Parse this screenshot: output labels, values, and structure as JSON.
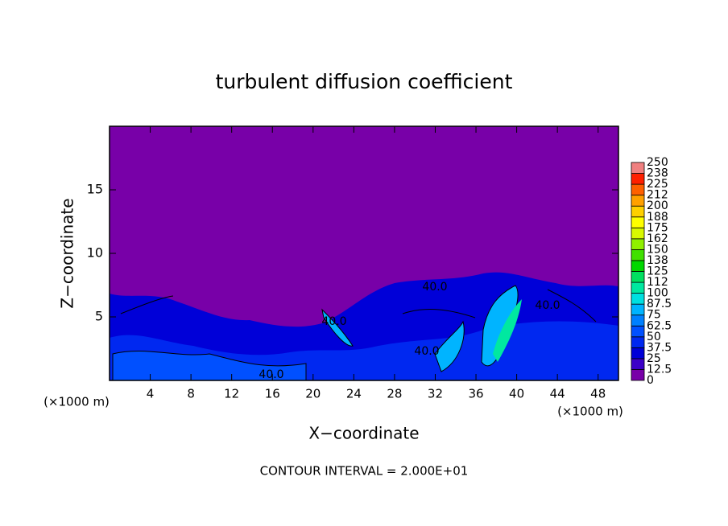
{
  "chart_data": {
    "type": "contour",
    "title": "turbulent diffusion coefficient",
    "x_label": "X−coordinate",
    "y_label": "Z−coordinate",
    "x_unit": "(×1000 m)",
    "x_unit_right": "(×1000 m)",
    "footer": "CONTOUR INTERVAL = 2.000E+01",
    "xlim": [
      0,
      50
    ],
    "xticks": [
      4,
      8,
      12,
      16,
      20,
      24,
      28,
      32,
      36,
      40,
      44,
      48
    ],
    "ylim": [
      0,
      20
    ],
    "yticks": [
      5,
      10,
      15
    ],
    "contour_labels": [
      "40.0",
      "40.0",
      "40.0",
      "40.0",
      "40.0"
    ],
    "colorbar": {
      "ticks": [
        0,
        12.5,
        25,
        37.5,
        50,
        62.5,
        75,
        87.5,
        100,
        {
          "value": 112.5,
          "label": "112"
        },
        125,
        {
          "value": 137.5,
          "label": "138"
        },
        150,
        {
          "value": 162.5,
          "label": "162"
        },
        175,
        {
          "value": 187.5,
          "label": "188"
        },
        200,
        {
          "value": 212.5,
          "label": "212"
        },
        225,
        {
          "value": 237.5,
          "label": "238"
        },
        250
      ],
      "colors": [
        "#7800a8",
        "#3c00c8",
        "#0000d8",
        "#0028f0",
        "#0050ff",
        "#0080ff",
        "#00b4ff",
        "#00e0e0",
        "#00e8a0",
        "#00e060",
        "#00d800",
        "#40e000",
        "#90f000",
        "#d8f800",
        "#ffff00",
        "#ffd000",
        "#ffa000",
        "#ff6000",
        "#ff2000",
        "#f08080"
      ]
    }
  }
}
